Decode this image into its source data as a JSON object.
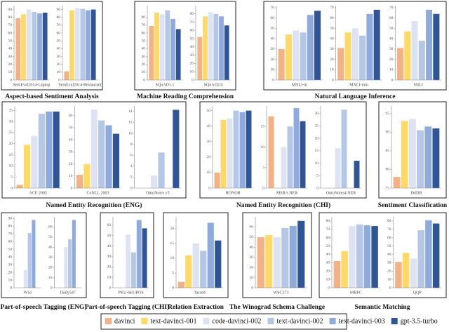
{
  "chart_data": {
    "type": "bar",
    "series": [
      {
        "name": "davinci",
        "color": "#f4b183"
      },
      {
        "name": "text-davinci-001",
        "color": "#ffd966"
      },
      {
        "name": "code-davinci-002",
        "color": "#dde3f3"
      },
      {
        "name": "text-davinci-002",
        "color": "#b4c7e7"
      },
      {
        "name": "text-davinci-003",
        "color": "#8faadc"
      },
      {
        "name": "gpt-3.5-turbo",
        "color": "#2f5597"
      }
    ],
    "groups": [
      {
        "title": "Aspect-based Sentiment Analysis",
        "panels": [
          {
            "category": "SemEval2014-Laptop",
            "ylim": [
              0,
              95
            ],
            "yticks": [
              0,
              10,
              20,
              30,
              40,
              50,
              60,
              70,
              80,
              90
            ],
            "values": [
              79,
              84,
              90,
              87,
              85,
              86
            ]
          },
          {
            "category": "SemEval2014-Restaurant",
            "ylim": [
              0,
              95
            ],
            "yticks": [
              0,
              10,
              20,
              30,
              40,
              50,
              60,
              70,
              80,
              90
            ],
            "values": [
              11,
              89,
              92,
              91,
              89,
              90
            ]
          }
        ]
      },
      {
        "title": "Machine Reading Comprehension",
        "panels": [
          {
            "category": "SQuAD1.1",
            "ylim": [
              0,
              95
            ],
            "yticks": [
              0,
              10,
              20,
              30,
              40,
              50,
              60,
              70,
              80
            ],
            "values": [
              69,
              86,
              84,
              89,
              78,
              65
            ]
          },
          {
            "category": "SQuAD2.0",
            "ylim": [
              0,
              90
            ],
            "yticks": [
              0,
              10,
              20,
              30,
              40,
              50,
              60,
              70,
              80
            ],
            "values": [
              52,
              77,
              82,
              80,
              77,
              66
            ]
          }
        ]
      },
      {
        "title": "Natural Language Inference",
        "panels": [
          {
            "category": "MNLI-m",
            "ylim": [
              0,
              72
            ],
            "yticks": [
              0,
              10,
              20,
              30,
              40,
              50,
              60,
              70
            ],
            "values": [
              30,
              44,
              48,
              46,
              63,
              67
            ]
          },
          {
            "category": "MNLI-mm",
            "ylim": [
              0,
              72
            ],
            "yticks": [
              0,
              10,
              20,
              30,
              40,
              50,
              60,
              70
            ],
            "values": [
              31,
              46,
              50,
              43,
              64,
              68
            ]
          },
          {
            "category": "SNLI",
            "ylim": [
              0,
              72
            ],
            "yticks": [
              0,
              10,
              20,
              30,
              40,
              50,
              60,
              70
            ],
            "values": [
              31,
              47,
              57,
              38,
              68,
              64
            ]
          }
        ]
      },
      {
        "title": "Named Entity Recognition (ENG)",
        "panels": [
          {
            "category": "ACE 2005",
            "ylim": [
              0,
              37
            ],
            "yticks": [
              0,
              5,
              10,
              15,
              20,
              25,
              30,
              35
            ],
            "values": [
              1.5,
              19.5,
              23.5,
              33.5,
              34.5,
              34.5
            ]
          },
          {
            "category": "CoNLL 2003",
            "ylim": [
              0,
              68
            ],
            "yticks": [
              0,
              10,
              20,
              30,
              40,
              50,
              60
            ],
            "values": [
              11,
              20,
              65,
              56,
              52,
              45
            ]
          },
          {
            "category": "OntoNotes v5",
            "ylim": [
              0,
              15
            ],
            "yticks": [
              0,
              2,
              4,
              6,
              8,
              10,
              12,
              14
            ],
            "values": [
              0,
              0,
              2.3,
              6.5,
              0,
              14.3
            ]
          }
        ]
      },
      {
        "title": "Named Entity Recognition (CHI)",
        "panels": [
          {
            "category": "HONOR",
            "ylim": [
              0,
              53
            ],
            "yticks": [
              0,
              10,
              20,
              30,
              40,
              50
            ],
            "values": [
              10,
              44,
              45,
              50,
              49,
              50
            ]
          },
          {
            "category": "MSRA NER",
            "ylim": [
              0,
              20
            ],
            "yticks": [
              0,
              5,
              10,
              15
            ],
            "values": [
              17.5,
              0,
              10,
              15,
              19.5,
              16.3
            ]
          },
          {
            "category": "OntoNotes4 NER",
            "ylim": [
              0,
              33
            ],
            "yticks": [
              0,
              5,
              10,
              15,
              20,
              25,
              30
            ],
            "values": [
              0,
              0,
              16,
              31.5,
              0,
              11
            ]
          }
        ]
      },
      {
        "title": "Sentiment Classification",
        "panels": [
          {
            "category": "IMDB",
            "ylim": [
              75,
              97
            ],
            "yticks": [
              75,
              80,
              85,
              90,
              95
            ],
            "values": [
              78,
              93,
              93.5,
              90.5,
              91.5,
              91
            ]
          }
        ]
      },
      {
        "title": "Part-of-speech Tagging (ENG)",
        "panels": [
          {
            "category": "WSJ",
            "ylim": [
              0,
              92
            ],
            "yticks": [
              0,
              10,
              20,
              30,
              40,
              50,
              60,
              70,
              80,
              90
            ],
            "values": [
              0,
              0,
              23,
              71,
              88,
              0
            ]
          },
          {
            "category": "Daily547",
            "ylim": [
              0,
              70
            ],
            "yticks": [
              0,
              10,
              20,
              30,
              40,
              50,
              60
            ],
            "values": [
              0,
              0,
              40,
              48,
              67,
              0
            ]
          }
        ]
      },
      {
        "title": "Part-of-speech Tagging (CHI)",
        "panels": [
          {
            "category": "PKU-SEGPOS",
            "ylim": [
              0,
              68
            ],
            "yticks": [
              0,
              10,
              20,
              30,
              40,
              50,
              60
            ],
            "values": [
              0,
              0,
              51,
              34,
              65,
              57
            ]
          }
        ]
      },
      {
        "title": "Relation Extraction",
        "panels": [
          {
            "category": "Tacred",
            "ylim": [
              0,
              24
            ],
            "yticks": [
              0,
              5,
              10,
              15,
              20
            ],
            "values": [
              2,
              11,
              15,
              12.5,
              22,
              16
            ]
          }
        ]
      },
      {
        "title": "The Winograd Schema Challenge",
        "panels": [
          {
            "category": "WSC273",
            "ylim": [
              0,
              70
            ],
            "yticks": [
              0,
              10,
              20,
              30,
              40,
              50,
              60
            ],
            "values": [
              50,
              52,
              50,
              59,
              61,
              66
            ]
          }
        ]
      },
      {
        "title": "Semantic Matching",
        "panels": [
          {
            "category": "MRPC",
            "ylim": [
              0,
              85
            ],
            "yticks": [
              0,
              10,
              20,
              30,
              40,
              50,
              60,
              70,
              80
            ],
            "values": [
              32,
              44,
              74,
              76,
              75,
              74
            ]
          },
          {
            "category": "QQP",
            "ylim": [
              0,
              85
            ],
            "yticks": [
              0,
              10,
              20,
              30,
              40,
              50,
              60,
              70,
              80
            ],
            "values": [
              31,
              42,
              35,
              69,
              81,
              77
            ]
          }
        ]
      }
    ]
  }
}
